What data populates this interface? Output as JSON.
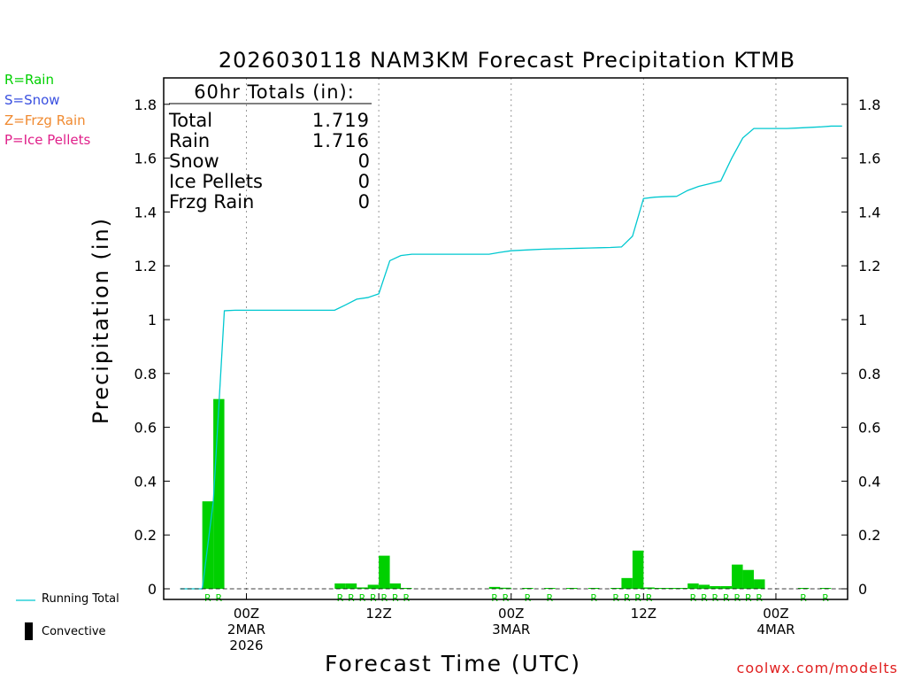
{
  "legend": {
    "rain": {
      "label": "R=Rain",
      "color": "#00d000"
    },
    "snow": {
      "label": "S=Snow",
      "color": "#3a50e0"
    },
    "frzg": {
      "label": "Z=Frzg Rain",
      "color": "#f08a30"
    },
    "ice": {
      "label": "P=Ice Pellets",
      "color": "#e0208a"
    },
    "running_total": {
      "label": "Running Total",
      "color": "#00c8d0"
    },
    "convective": {
      "label": "Convective",
      "color": "#000000"
    }
  },
  "footer": "coolwx.com/modelts",
  "chart_data": {
    "type": "bar",
    "title": "2026030118 NAM3KM Forecast Precipitation KTMB",
    "xlabel": "Forecast Time (UTC)",
    "ylabel": "Precipitation (in)",
    "ylim": [
      0,
      1.9
    ],
    "yticks": [
      0,
      0.2,
      0.4,
      0.6,
      0.8,
      1,
      1.2,
      1.4,
      1.6,
      1.8
    ],
    "ytick_labels": [
      "0",
      "0.2",
      "0.4",
      "0.6",
      "0.8",
      "1",
      "1.2",
      "1.4",
      "1.6",
      "1.8"
    ],
    "xlim": [
      -1.5,
      60.5
    ],
    "grid": "vertical dotted at 00Z and 12Z",
    "x_ticks": [
      {
        "x": 6,
        "label": [
          "00Z",
          "2MAR",
          "2026"
        ]
      },
      {
        "x": 18,
        "label": [
          "12Z"
        ]
      },
      {
        "x": 30,
        "label": [
          "00Z",
          "3MAR"
        ]
      },
      {
        "x": 42,
        "label": [
          "12Z"
        ]
      },
      {
        "x": 54,
        "label": [
          "00Z",
          "4MAR"
        ]
      }
    ],
    "totals_box": {
      "heading": "60hr Totals (in):",
      "rows": [
        {
          "label": "Total",
          "value": "1.719"
        },
        {
          "label": "Rain",
          "value": "1.716"
        },
        {
          "label": "Snow",
          "value": "0"
        },
        {
          "label": "Ice Pellets",
          "value": "0"
        },
        {
          "label": "Frzg Rain",
          "value": "0"
        }
      ]
    },
    "hourly_precip": {
      "hours": [
        1,
        2,
        3,
        4,
        5,
        6,
        7,
        8,
        9,
        10,
        11,
        12,
        13,
        14,
        15,
        16,
        17,
        18,
        19,
        20,
        21,
        22,
        23,
        24,
        25,
        26,
        27,
        28,
        29,
        30,
        31,
        32,
        33,
        34,
        35,
        36,
        37,
        38,
        39,
        40,
        41,
        42,
        43,
        44,
        45,
        46,
        47,
        48,
        49,
        50,
        51,
        52,
        53,
        54,
        55,
        56,
        57,
        58,
        59,
        60
      ],
      "values": [
        0,
        0,
        0.325,
        0.705,
        0,
        0,
        0,
        0,
        0,
        0,
        0,
        0,
        0,
        0,
        0.02,
        0.02,
        0.005,
        0.015,
        0.123,
        0.02,
        0.003,
        0,
        0,
        0,
        0,
        0,
        0,
        0,
        0.007,
        0.004,
        0,
        0.002,
        0,
        0.001,
        0,
        0.002,
        0,
        0.001,
        0,
        0.002,
        0.04,
        0.142,
        0.005,
        0.002,
        0.001,
        0.001,
        0.02,
        0.015,
        0.01,
        0.01,
        0.09,
        0.07,
        0.035,
        0,
        0,
        0,
        0.002,
        0,
        0.003,
        0
      ],
      "type_markers": [
        "",
        "",
        "R",
        "R",
        "",
        "",
        "",
        "",
        "",
        "",
        "",
        "",
        "",
        "",
        "R",
        "R",
        "R",
        "R",
        "R",
        "R",
        "R",
        "",
        "",
        "",
        "",
        "",
        "",
        "",
        "R",
        "R",
        "",
        "R",
        "",
        "R",
        "",
        "",
        "",
        "R",
        "",
        "R",
        "R",
        "R",
        "R",
        "",
        "",
        "",
        "R",
        "R",
        "R",
        "R",
        "R",
        "R",
        "R",
        "",
        "",
        "",
        "R",
        "",
        "R",
        ""
      ]
    },
    "running_total": {
      "x": [
        0,
        1,
        2,
        3,
        4,
        5,
        6,
        7,
        8,
        9,
        10,
        11,
        12,
        13,
        14,
        15,
        16,
        17,
        18,
        19,
        20,
        21,
        22,
        23,
        24,
        25,
        26,
        27,
        28,
        29,
        30,
        31,
        32,
        33,
        34,
        35,
        36,
        37,
        38,
        39,
        40,
        41,
        42,
        43,
        44,
        45,
        46,
        47,
        48,
        49,
        50,
        51,
        52,
        53,
        54,
        55,
        56,
        57,
        58,
        59,
        60
      ],
      "values": [
        0,
        0,
        0,
        0.325,
        1.033,
        1.035,
        1.035,
        1.035,
        1.035,
        1.035,
        1.035,
        1.035,
        1.035,
        1.035,
        1.035,
        1.055,
        1.076,
        1.082,
        1.096,
        1.219,
        1.238,
        1.243,
        1.243,
        1.243,
        1.243,
        1.243,
        1.243,
        1.243,
        1.243,
        1.25,
        1.256,
        1.258,
        1.26,
        1.262,
        1.263,
        1.264,
        1.265,
        1.266,
        1.267,
        1.268,
        1.27,
        1.31,
        1.45,
        1.455,
        1.457,
        1.458,
        1.48,
        1.495,
        1.505,
        1.515,
        1.6,
        1.675,
        1.71,
        1.71,
        1.71,
        1.71,
        1.712,
        1.714,
        1.716,
        1.719,
        1.719
      ]
    }
  }
}
